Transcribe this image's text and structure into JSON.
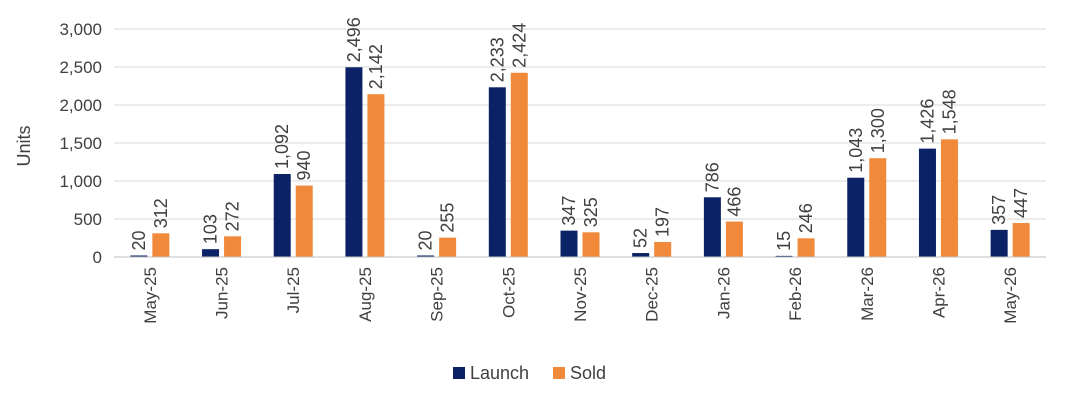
{
  "chart_data": {
    "type": "bar",
    "title": "",
    "xlabel": "",
    "ylabel": "Units",
    "ylim": [
      0,
      3000
    ],
    "yticks": [
      "0",
      "500",
      "1,000",
      "1,500",
      "2,000",
      "2,500",
      "3,000"
    ],
    "ytick_values": [
      0,
      500,
      1000,
      1500,
      2000,
      2500,
      3000
    ],
    "grid": true,
    "legend_position": "bottom",
    "categories": [
      "May-25",
      "Jun-25",
      "Jul-25",
      "Aug-25",
      "Sep-25",
      "Oct-25",
      "Nov-25",
      "Dec-25",
      "Jan-26",
      "Feb-26",
      "Mar-26",
      "Apr-26",
      "May-26"
    ],
    "series": [
      {
        "name": "Launch",
        "color": "#0b2366",
        "values": [
          20,
          103,
          1092,
          2496,
          20,
          2233,
          347,
          52,
          786,
          15,
          1043,
          1426,
          357
        ],
        "labels": [
          "20",
          "103",
          "1,092",
          "2,496",
          "20",
          "2,233",
          "347",
          "52",
          "786",
          "15",
          "1,043",
          "1,426",
          "357"
        ]
      },
      {
        "name": "Sold",
        "color": "#f08a3a",
        "values": [
          312,
          272,
          940,
          2142,
          255,
          2424,
          325,
          197,
          466,
          246,
          1300,
          1548,
          447
        ],
        "labels": [
          "312",
          "272",
          "940",
          "2,142",
          "255",
          "2,424",
          "325",
          "197",
          "466",
          "246",
          "1,300",
          "1,548",
          "447"
        ]
      }
    ]
  }
}
